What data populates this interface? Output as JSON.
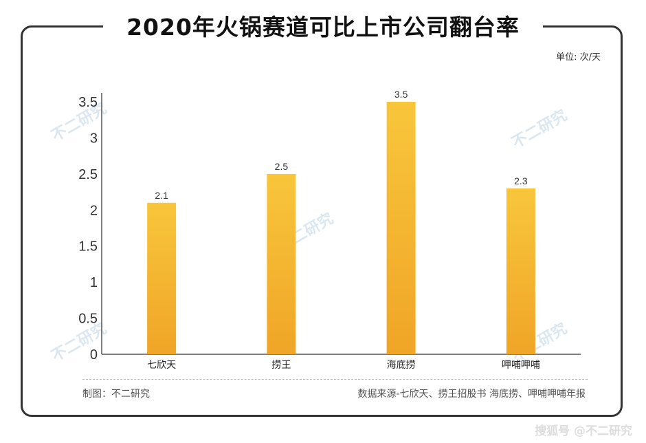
{
  "title": "2020年火锅赛道可比上市公司翻台率",
  "unit_label": "单位: 次/天",
  "footer": {
    "credit": "制图：不二研究",
    "source": "数据来源-七欣天、捞王招股书 海底捞、呷哺呷哺年报"
  },
  "watermark": "不二研究",
  "bottom_mark": "搜狐号 @不二研究",
  "colors": {
    "bar_top": "#f8c63b",
    "bar_bottom": "#f0a527",
    "axis": "#555555"
  },
  "chart_data": {
    "type": "bar",
    "categories": [
      "七欣天",
      "捞王",
      "海底捞",
      "呷哺呷哺"
    ],
    "values": [
      2.1,
      2.5,
      3.5,
      2.3
    ],
    "value_labels": [
      "2.1",
      "2.5",
      "3.5",
      "2.3"
    ],
    "title": "2020年火锅赛道可比上市公司翻台率",
    "xlabel": "",
    "ylabel": "",
    "ylim": [
      0,
      3.5
    ],
    "yticks": [
      "0",
      "0.5",
      "1",
      "1.5",
      "2",
      "2.5",
      "3",
      "3.5"
    ],
    "grid": false
  }
}
